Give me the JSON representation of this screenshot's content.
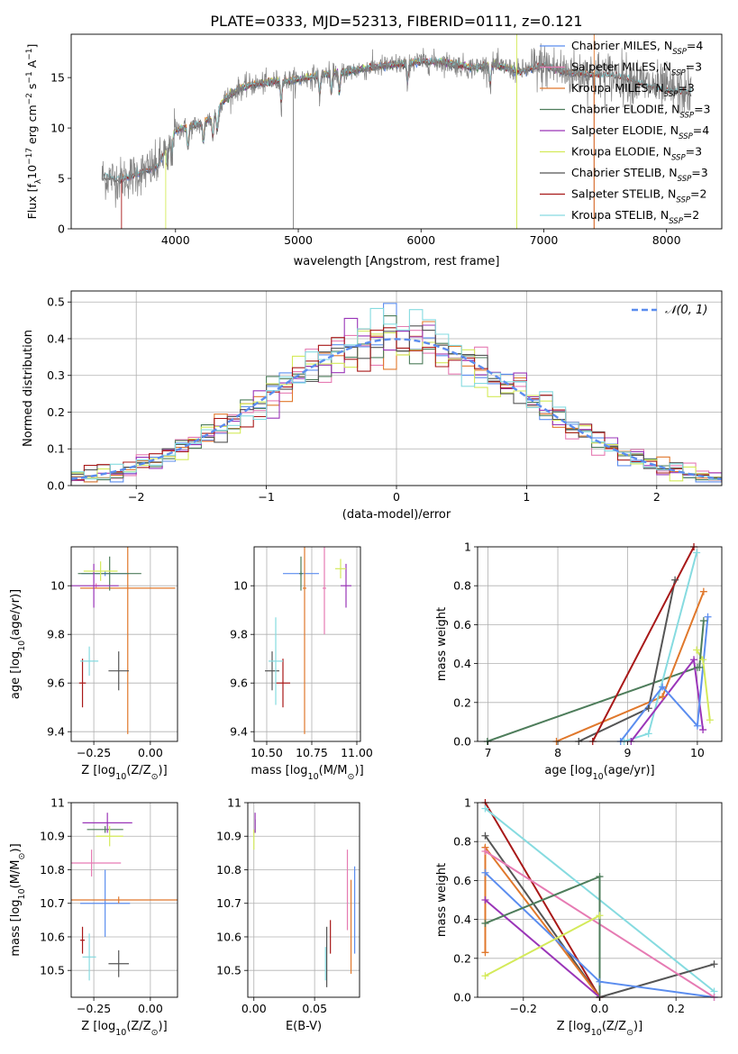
{
  "figure": {
    "title": "PLATE=0333, MJD=52313, FIBERID=0111, z=0.121"
  },
  "colors": {
    "chabrier_miles": "#5b8def",
    "salpeter_miles": "#e67bb3",
    "kroupa_miles": "#e0782c",
    "chabrier_elodie": "#4e7d5b",
    "salpeter_elodie": "#9a35b8",
    "kroupa_elodie": "#d4ea5a",
    "chabrier_stelib": "#555555",
    "salpeter_stelib": "#a81818",
    "kroupa_stelib": "#86dbe0",
    "gaussian": "#5b8def",
    "spectrum_gray": "#808080"
  },
  "chart_data": [
    {
      "id": "spectrum",
      "type": "line",
      "xlabel": "wavelength [Angstrom, rest frame]",
      "ylabel": "Flux [f$_\\lambda$10$^{-17}$ erg cm$^{-2}$ s$^{-1}$ A$^{-1}$]",
      "ylabel_parts": [
        "Flux [f",
        "λ",
        "10",
        "−17",
        " erg cm",
        "−2",
        " s",
        "−1",
        " A",
        "−1",
        "]"
      ],
      "xlim": [
        3150,
        8450
      ],
      "ylim": [
        0,
        19.3
      ],
      "xticks": [
        4000,
        5000,
        6000,
        7000,
        8000
      ],
      "yticks": [
        0,
        5,
        10,
        15
      ],
      "legend_position": "upper-right",
      "legend": [
        {
          "main": "Chabrier MILES, N",
          "sub": "SSP",
          "tail": "=4",
          "color_key": "chabrier_miles"
        },
        {
          "main": "Salpeter MILES, N",
          "sub": "SSP",
          "tail": "=3",
          "color_key": "salpeter_miles"
        },
        {
          "main": "Kroupa MILES, N",
          "sub": "SSP",
          "tail": "=3",
          "color_key": "kroupa_miles"
        },
        {
          "main": "Chabrier ELODIE, N",
          "sub": "SSP",
          "tail": "=3",
          "color_key": "chabrier_elodie"
        },
        {
          "main": "Salpeter ELODIE, N",
          "sub": "SSP",
          "tail": "=4",
          "color_key": "salpeter_elodie"
        },
        {
          "main": "Kroupa ELODIE, N",
          "sub": "SSP",
          "tail": "=3",
          "color_key": "kroupa_elodie"
        },
        {
          "main": "Chabrier STELIB, N",
          "sub": "SSP",
          "tail": "=3",
          "color_key": "chabrier_stelib"
        },
        {
          "main": "Salpeter STELIB, N",
          "sub": "SSP",
          "tail": "=2",
          "color_key": "salpeter_stelib"
        },
        {
          "main": "Kroupa STELIB, N",
          "sub": "SSP",
          "tail": "=2",
          "color_key": "kroupa_stelib"
        }
      ],
      "continuum_x": [
        3400,
        3550,
        3700,
        3850,
        3950,
        4000,
        4100,
        4200,
        4300,
        4400,
        4500,
        4600,
        4800,
        5000,
        5200,
        5400,
        5600,
        5800,
        6000,
        6200,
        6400,
        6600,
        6800,
        7000,
        7200,
        7400,
        7600,
        7800,
        8000,
        8200
      ],
      "continuum_y": [
        5.2,
        4.9,
        5.5,
        6.2,
        8.5,
        9.8,
        10.0,
        10.4,
        11.0,
        12.8,
        13.8,
        14.2,
        14.6,
        14.8,
        15.3,
        15.6,
        16.0,
        16.3,
        16.6,
        16.5,
        16.0,
        16.3,
        15.6,
        16.2,
        15.5,
        15.3,
        15.2,
        14.4,
        13.8,
        13.5
      ],
      "absorption_lines": [
        3934,
        3968,
        4102,
        4227,
        4304,
        4340,
        4861,
        5175,
        5270,
        5335,
        5890,
        6563
      ],
      "spikes_x": [
        3560,
        3920,
        4960,
        6780,
        7410
      ],
      "spikes_y": [
        0,
        0,
        0,
        0,
        0
      ]
    },
    {
      "id": "residual-hist",
      "type": "step",
      "xlabel": "(data-model)/error",
      "ylabel": "Normed distribution",
      "xlim": [
        -2.5,
        2.5
      ],
      "ylim": [
        0,
        0.53
      ],
      "xticks": [
        -2,
        -1,
        0,
        1,
        2
      ],
      "yticks": [
        0,
        0.1,
        0.2,
        0.3,
        0.4,
        0.5
      ],
      "legend": [
        {
          "label": "𝒩(0, 1)",
          "color_key": "gaussian"
        }
      ],
      "legend_position": "upper-right",
      "bin_width": 0.1,
      "gaussian": {
        "mean": 0,
        "sigma": 1
      }
    },
    {
      "id": "age-vs-Z",
      "type": "errorbar",
      "xlabel": "Z [log$_{10}$(Z/Z$_\\odot$)]",
      "ylabel": "age [log$_{10}$(age/yr)]",
      "xlim": [
        -0.35,
        0.12
      ],
      "ylim": [
        9.36,
        10.16
      ],
      "xticks": [
        -0.25,
        0.0
      ],
      "xtick_labels": [
        "−0.25",
        "0.00"
      ],
      "yticks": [
        9.4,
        9.6,
        9.8,
        10.0
      ],
      "points": [
        {
          "c": "chabrier_miles",
          "x": -0.2,
          "xerr": 0.105,
          "y": 10.05,
          "yerr": 0.01
        },
        {
          "c": "salpeter_miles",
          "x": -0.24,
          "xerr": 0.015,
          "y": 10.0,
          "yerr": 0.01
        },
        {
          "c": "kroupa_miles",
          "x": -0.1,
          "xerr": 0.21,
          "y": 9.99,
          "yerr": 0.6
        },
        {
          "c": "chabrier_elodie",
          "x": -0.18,
          "xerr": 0.14,
          "y": 10.05,
          "yerr": 0.07
        },
        {
          "c": "salpeter_elodie",
          "x": -0.25,
          "xerr": 0.11,
          "y": 10.0,
          "yerr": 0.09
        },
        {
          "c": "kroupa_elodie",
          "x": -0.22,
          "xerr": 0.075,
          "y": 10.06,
          "yerr": 0.04
        },
        {
          "c": "chabrier_stelib",
          "x": -0.14,
          "xerr": 0.045,
          "y": 9.65,
          "yerr": 0.08
        },
        {
          "c": "salpeter_stelib",
          "x": -0.3,
          "xerr": 0.015,
          "y": 9.6,
          "yerr": 0.1
        },
        {
          "c": "kroupa_stelib",
          "x": -0.27,
          "xerr": 0.04,
          "y": 9.69,
          "yerr": 0.06
        }
      ]
    },
    {
      "id": "age-vs-mass",
      "type": "errorbar",
      "xlabel": "mass [log$_{10}$(M/M$_\\odot$)]",
      "ylabel": "",
      "xlim": [
        10.43,
        11.02
      ],
      "ylim": [
        9.36,
        10.16
      ],
      "xticks": [
        10.5,
        10.75,
        11.0
      ],
      "xtick_labels": [
        "10.50",
        "10.75",
        "11.00"
      ],
      "yticks": [
        9.4,
        9.6,
        9.8,
        10.0
      ],
      "points": [
        {
          "c": "chabrier_miles",
          "x": 10.69,
          "xerr": 0.1,
          "y": 10.05,
          "yerr": 0.01
        },
        {
          "c": "salpeter_miles",
          "x": 10.82,
          "xerr": 0.01,
          "y": 9.99,
          "yerr": 0.19
        },
        {
          "c": "kroupa_miles",
          "x": 10.71,
          "xerr": 0.01,
          "y": 9.99,
          "yerr": 0.6
        },
        {
          "c": "chabrier_elodie",
          "x": 10.69,
          "xerr": 0.01,
          "y": 10.05,
          "yerr": 0.07
        },
        {
          "c": "salpeter_elodie",
          "x": 10.94,
          "xerr": 0.03,
          "y": 10.0,
          "yerr": 0.09
        },
        {
          "c": "kroupa_elodie",
          "x": 10.91,
          "xerr": 0.03,
          "y": 10.07,
          "yerr": 0.04
        },
        {
          "c": "chabrier_stelib",
          "x": 10.53,
          "xerr": 0.04,
          "y": 9.65,
          "yerr": 0.08
        },
        {
          "c": "salpeter_stelib",
          "x": 10.59,
          "xerr": 0.04,
          "y": 9.6,
          "yerr": 0.1
        },
        {
          "c": "kroupa_stelib",
          "x": 10.55,
          "xerr": 0.04,
          "y": 9.69,
          "yerr": 0.18
        }
      ]
    },
    {
      "id": "massweight-vs-age",
      "type": "line",
      "xlabel": "age [log$_{10}$(age/yr)]",
      "ylabel": "mass weight",
      "xlim": [
        6.85,
        10.35
      ],
      "ylim": [
        0,
        1.0
      ],
      "xticks": [
        7,
        8,
        9,
        10
      ],
      "yticks": [
        0,
        0.2,
        0.4,
        0.6,
        0.8,
        1.0
      ],
      "series": [
        {
          "c": "chabrier_elodie",
          "x": [
            6.99,
            10.0
          ],
          "y": [
            0.0,
            0.38
          ]
        },
        {
          "c": "kroupa_miles",
          "x": [
            7.98,
            9.5,
            10.09
          ],
          "y": [
            0.0,
            0.23,
            0.77
          ]
        },
        {
          "c": "chabrier_stelib",
          "x": [
            8.3,
            9.3,
            9.68
          ],
          "y": [
            0.0,
            0.17,
            0.83
          ]
        },
        {
          "c": "salpeter_stelib",
          "x": [
            8.5,
            9.95
          ],
          "y": [
            0.0,
            1.0
          ]
        },
        {
          "c": "kroupa_stelib",
          "x": [
            8.95,
            9.3,
            9.99
          ],
          "y": [
            0.0,
            0.04,
            0.97
          ]
        },
        {
          "c": "salpeter_elodie",
          "x": [
            9.05,
            9.95,
            10.08
          ],
          "y": [
            0.0,
            0.42,
            0.06
          ]
        },
        {
          "c": "chabrier_miles",
          "x": [
            8.9,
            9.5,
            10.0,
            10.15
          ],
          "y": [
            0.0,
            0.28,
            0.08,
            0.64
          ]
        },
        {
          "c": "kroupa_elodie",
          "x": [
            9.99,
            10.08,
            10.18
          ],
          "y": [
            0.47,
            0.42,
            0.11
          ]
        },
        {
          "c": "chabrier_elodie",
          "x": [
            10.03,
            10.09
          ],
          "y": [
            0.38,
            0.62
          ]
        }
      ]
    },
    {
      "id": "mass-vs-Z",
      "type": "errorbar",
      "xlabel": "Z [log$_{10}$(Z/Z$_\\odot$)]",
      "ylabel": "mass [log$_{10}$(M/M$_\\odot$)]",
      "xlim": [
        -0.35,
        0.12
      ],
      "ylim": [
        10.42,
        11.0
      ],
      "xticks": [
        -0.25,
        0.0
      ],
      "xtick_labels": [
        "−0.25",
        "0.00"
      ],
      "yticks": [
        10.5,
        10.6,
        10.7,
        10.8,
        10.9,
        11.0
      ],
      "points": [
        {
          "c": "chabrier_miles",
          "x": -0.2,
          "xerr": 0.11,
          "y": 10.7,
          "yerr": 0.1
        },
        {
          "c": "salpeter_miles",
          "x": -0.26,
          "xerr": 0.13,
          "y": 10.82,
          "yerr": 0.04
        },
        {
          "c": "kroupa_miles",
          "x": -0.14,
          "xerr": 0.27,
          "y": 10.71,
          "yerr": 0.01
        },
        {
          "c": "chabrier_elodie",
          "x": -0.2,
          "xerr": 0.08,
          "y": 10.92,
          "yerr": 0.01
        },
        {
          "c": "salpeter_elodie",
          "x": -0.19,
          "xerr": 0.11,
          "y": 10.94,
          "yerr": 0.03
        },
        {
          "c": "kroupa_elodie",
          "x": -0.18,
          "xerr": 0.06,
          "y": 10.9,
          "yerr": 0.03
        },
        {
          "c": "chabrier_stelib",
          "x": -0.14,
          "xerr": 0.045,
          "y": 10.52,
          "yerr": 0.04
        },
        {
          "c": "salpeter_stelib",
          "x": -0.3,
          "xerr": 0.01,
          "y": 10.59,
          "yerr": 0.04
        },
        {
          "c": "kroupa_stelib",
          "x": -0.27,
          "xerr": 0.03,
          "y": 10.54,
          "yerr": 0.07
        }
      ]
    },
    {
      "id": "mass-vs-ebv",
      "type": "errorbar",
      "xlabel": "E(B-V)",
      "ylabel": "",
      "xlim": [
        -0.005,
        0.087
      ],
      "ylim": [
        10.42,
        11.0
      ],
      "xticks": [
        0.0,
        0.05
      ],
      "xtick_labels": [
        "0.00",
        "0.05"
      ],
      "yticks": [
        10.5,
        10.6,
        10.7,
        10.8,
        10.9,
        11.0
      ],
      "points": [
        {
          "c": "chabrier_miles",
          "x": 0.083,
          "xerr": 0.0,
          "y": 10.68,
          "yerr": 0.13
        },
        {
          "c": "salpeter_miles",
          "x": 0.077,
          "xerr": 0.0,
          "y": 10.74,
          "yerr": 0.12
        },
        {
          "c": "kroupa_miles",
          "x": 0.08,
          "xerr": 0.0,
          "y": 10.63,
          "yerr": 0.14
        },
        {
          "c": "chabrier_elodie",
          "x": 0.001,
          "xerr": 0.0,
          "y": 10.93,
          "yerr": 0.02
        },
        {
          "c": "salpeter_elodie",
          "x": 0.001,
          "xerr": 0.0,
          "y": 10.94,
          "yerr": 0.03
        },
        {
          "c": "kroupa_elodie",
          "x": 0.0,
          "xerr": 0.0,
          "y": 10.89,
          "yerr": 0.03
        },
        {
          "c": "chabrier_stelib",
          "x": 0.06,
          "xerr": 0.0,
          "y": 10.54,
          "yerr": 0.09
        },
        {
          "c": "salpeter_stelib",
          "x": 0.063,
          "xerr": 0.0,
          "y": 10.6,
          "yerr": 0.05
        },
        {
          "c": "kroupa_stelib",
          "x": 0.059,
          "xerr": 0.0,
          "y": 10.52,
          "yerr": 0.05
        }
      ]
    },
    {
      "id": "massweight-vs-Z",
      "type": "line",
      "xlabel": "Z [log$_{10}$(Z/Z$_\\odot$)]",
      "ylabel": "mass weight",
      "xlim": [
        -0.32,
        0.32
      ],
      "ylim": [
        0,
        1.0
      ],
      "xticks": [
        -0.2,
        0.0,
        0.2
      ],
      "xtick_labels": [
        "−0.2",
        "0.0",
        "0.2"
      ],
      "yticks": [
        0,
        0.2,
        0.4,
        0.6,
        0.8,
        1.0
      ],
      "series": [
        {
          "c": "salpeter_stelib",
          "x": [
            -0.3,
            0.0
          ],
          "y": [
            1.0,
            0.0
          ]
        },
        {
          "c": "kroupa_stelib",
          "x": [
            -0.3,
            0.3
          ],
          "y": [
            0.97,
            0.03
          ]
        },
        {
          "c": "chabrier_stelib",
          "x": [
            -0.3,
            0.0,
            0.3
          ],
          "y": [
            0.83,
            0.0,
            0.17
          ]
        },
        {
          "c": "kroupa_miles",
          "x": [
            -0.3,
            -0.3,
            0.0
          ],
          "y": [
            0.23,
            0.77,
            0.0
          ]
        },
        {
          "c": "chabrier_miles",
          "x": [
            -0.3,
            0.0,
            0.3
          ],
          "y": [
            0.64,
            0.08,
            0.0
          ]
        },
        {
          "c": "salpeter_miles",
          "x": [
            -0.3,
            0.3
          ],
          "y": [
            0.75,
            0.0
          ]
        },
        {
          "c": "salpeter_elodie",
          "x": [
            -0.3,
            0.0
          ],
          "y": [
            0.5,
            0.0
          ]
        },
        {
          "c": "chabrier_elodie",
          "x": [
            -0.3,
            0.0,
            0.0
          ],
          "y": [
            0.38,
            0.62,
            0.0
          ]
        },
        {
          "c": "kroupa_elodie",
          "x": [
            -0.3,
            0.0
          ],
          "y": [
            0.11,
            0.42
          ]
        }
      ]
    }
  ]
}
